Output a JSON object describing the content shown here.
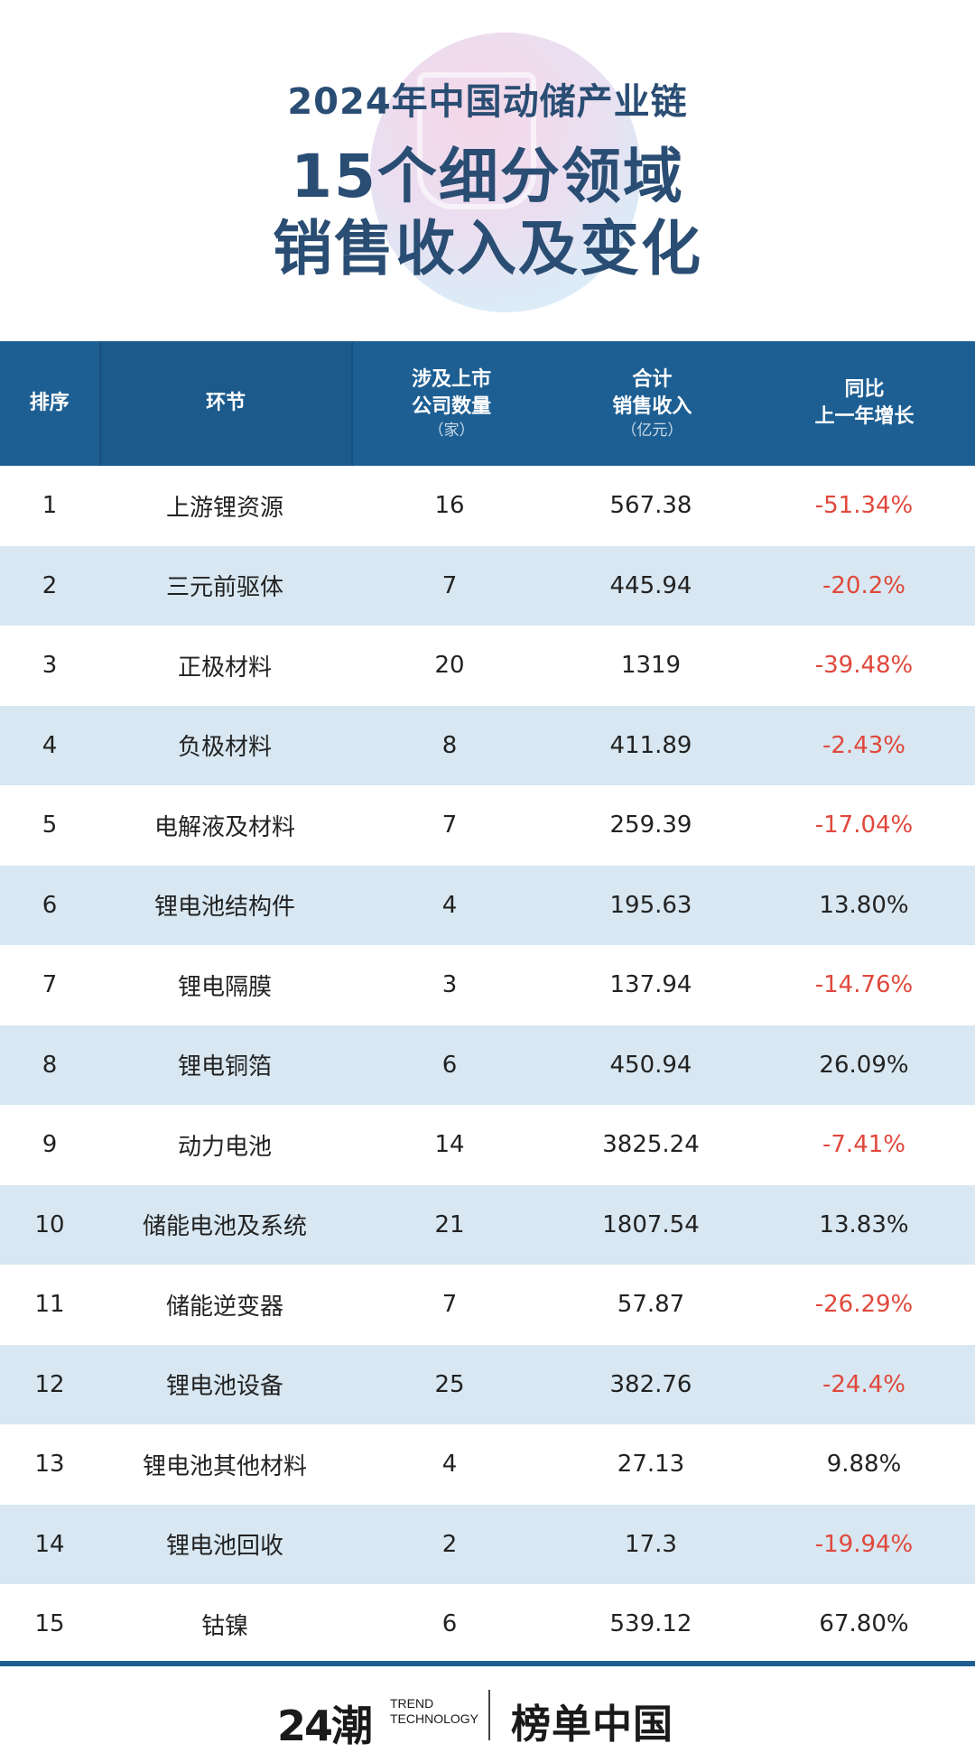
{
  "header": {
    "title_line1": "2024年中国动储产业链",
    "title_line2": "15个细分领域",
    "title_line3": "销售收入及变化"
  },
  "table": {
    "headers": [
      {
        "label": "排序",
        "unit": ""
      },
      {
        "label": "环节",
        "unit": ""
      },
      {
        "label": "涉及上市\n公司数量",
        "unit": "（家）"
      },
      {
        "label": "合计\n销售收入",
        "unit": "（亿元）"
      },
      {
        "label": "同比\n上一年增长",
        "unit": ""
      }
    ],
    "rows": [
      {
        "rank": "1",
        "segment": "上游锂资源",
        "companies": "16",
        "revenue": "567.38",
        "growth": "-51.34%",
        "negative": true
      },
      {
        "rank": "2",
        "segment": "三元前驱体",
        "companies": "7",
        "revenue": "445.94",
        "growth": "-20.2%",
        "negative": true
      },
      {
        "rank": "3",
        "segment": "正极材料",
        "companies": "20",
        "revenue": "1319",
        "growth": "-39.48%",
        "negative": true
      },
      {
        "rank": "4",
        "segment": "负极材料",
        "companies": "8",
        "revenue": "411.89",
        "growth": "-2.43%",
        "negative": true
      },
      {
        "rank": "5",
        "segment": "电解液及材料",
        "companies": "7",
        "revenue": "259.39",
        "growth": "-17.04%",
        "negative": true
      },
      {
        "rank": "6",
        "segment": "锂电池结构件",
        "companies": "4",
        "revenue": "195.63",
        "growth": "13.80%",
        "negative": false
      },
      {
        "rank": "7",
        "segment": "锂电隔膜",
        "companies": "3",
        "revenue": "137.94",
        "growth": "-14.76%",
        "negative": true
      },
      {
        "rank": "8",
        "segment": "锂电铜箔",
        "companies": "6",
        "revenue": "450.94",
        "growth": "26.09%",
        "negative": false
      },
      {
        "rank": "9",
        "segment": "动力电池",
        "companies": "14",
        "revenue": "3825.24",
        "growth": "-7.41%",
        "negative": true
      },
      {
        "rank": "10",
        "segment": "储能电池及系统",
        "companies": "21",
        "revenue": "1807.54",
        "growth": "13.83%",
        "negative": false
      },
      {
        "rank": "11",
        "segment": "储能逆变器",
        "companies": "7",
        "revenue": "57.87",
        "growth": "-26.29%",
        "negative": true
      },
      {
        "rank": "12",
        "segment": "锂电池设备",
        "companies": "25",
        "revenue": "382.76",
        "growth": "-24.4%",
        "negative": true
      },
      {
        "rank": "13",
        "segment": "锂电池其他材料",
        "companies": "4",
        "revenue": "27.13",
        "growth": "9.88%",
        "negative": false
      },
      {
        "rank": "14",
        "segment": "锂电池回收",
        "companies": "2",
        "revenue": "17.3",
        "growth": "-19.94%",
        "negative": true
      },
      {
        "rank": "15",
        "segment": "钴镍",
        "companies": "6",
        "revenue": "539.12",
        "growth": "67.80%",
        "negative": false
      }
    ]
  },
  "footer": {
    "logo_main": "24潮",
    "logo_sub_line1": "TREND",
    "logo_sub_line2": "TECHNOLOGY",
    "brand": "榜单中国"
  },
  "colors": {
    "header_bg": "#1e5f93",
    "title_text": "#2a4d73",
    "stripe": "#d8e7f1",
    "negative": "#e0483c"
  }
}
